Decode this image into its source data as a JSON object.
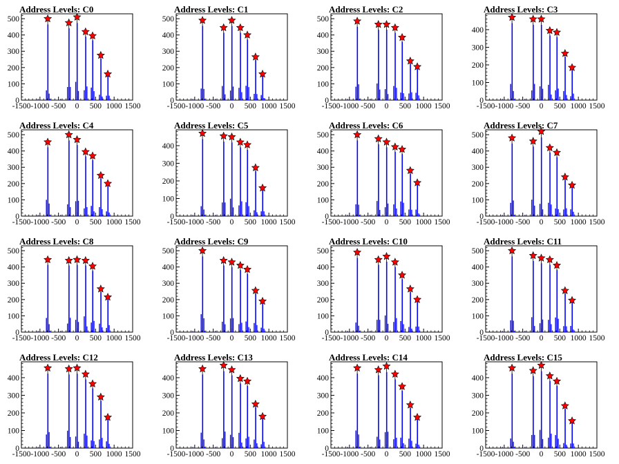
{
  "colors": {
    "histogram": "#0000ff",
    "marker": "#ff0000",
    "axes": "#000000"
  },
  "chart_data": [
    {
      "type": "bar",
      "title": "Address Levels: C0",
      "xlim": [
        -1500,
        1500
      ],
      "ylim": [
        0,
        530
      ],
      "xticks": [
        "-1500",
        "-1000",
        "-500",
        "0",
        "500",
        "1000",
        "1500"
      ],
      "yticks": [
        "0",
        "100",
        "200",
        "300",
        "400",
        "500"
      ],
      "peaks": [
        {
          "x": -790,
          "y": 500
        },
        {
          "x": -220,
          "y": 475
        },
        {
          "x": 0,
          "y": 510
        },
        {
          "x": 230,
          "y": 420
        },
        {
          "x": 420,
          "y": 395
        },
        {
          "x": 640,
          "y": 275
        },
        {
          "x": 830,
          "y": 160
        }
      ]
    },
    {
      "type": "bar",
      "title": "Address Levels: C1",
      "xlim": [
        -1500,
        1500
      ],
      "ylim": [
        0,
        530
      ],
      "xticks": [
        "-1500",
        "-1000",
        "-500",
        "0",
        "500",
        "1000",
        "1500"
      ],
      "yticks": [
        "0",
        "100",
        "200",
        "300",
        "400",
        "500"
      ],
      "peaks": [
        {
          "x": -790,
          "y": 490
        },
        {
          "x": -220,
          "y": 445
        },
        {
          "x": 0,
          "y": 490
        },
        {
          "x": 230,
          "y": 445
        },
        {
          "x": 420,
          "y": 400
        },
        {
          "x": 640,
          "y": 265
        },
        {
          "x": 830,
          "y": 160
        }
      ]
    },
    {
      "type": "bar",
      "title": "Address Levels: C2",
      "xlim": [
        -1500,
        1500
      ],
      "ylim": [
        0,
        530
      ],
      "xticks": [
        "-1500",
        "-1000",
        "-500",
        "0",
        "500",
        "1000",
        "1500"
      ],
      "yticks": [
        "0",
        "100",
        "200",
        "300",
        "400",
        "500"
      ],
      "peaks": [
        {
          "x": -790,
          "y": 485
        },
        {
          "x": -220,
          "y": 465
        },
        {
          "x": 0,
          "y": 465
        },
        {
          "x": 230,
          "y": 445
        },
        {
          "x": 420,
          "y": 385
        },
        {
          "x": 640,
          "y": 240
        },
        {
          "x": 830,
          "y": 205
        }
      ]
    },
    {
      "type": "bar",
      "title": "Address Levels: C3",
      "xlim": [
        -1500,
        1500
      ],
      "ylim": [
        0,
        490
      ],
      "xticks": [
        "-1500",
        "-1000",
        "-500",
        "0",
        "500",
        "1000",
        "1500"
      ],
      "yticks": [
        "0",
        "100",
        "200",
        "300",
        "400"
      ],
      "peaks": [
        {
          "x": -790,
          "y": 470
        },
        {
          "x": -220,
          "y": 460
        },
        {
          "x": 0,
          "y": 460
        },
        {
          "x": 230,
          "y": 395
        },
        {
          "x": 420,
          "y": 385
        },
        {
          "x": 640,
          "y": 265
        },
        {
          "x": 830,
          "y": 185
        }
      ]
    },
    {
      "type": "bar",
      "title": "Address Levels: C4",
      "xlim": [
        -1500,
        1500
      ],
      "ylim": [
        0,
        530
      ],
      "xticks": [
        "-1500",
        "-1000",
        "-500",
        "0",
        "500",
        "1000",
        "1500"
      ],
      "yticks": [
        "0",
        "100",
        "200",
        "300",
        "400",
        "500"
      ],
      "peaks": [
        {
          "x": -790,
          "y": 455
        },
        {
          "x": -220,
          "y": 500
        },
        {
          "x": 0,
          "y": 470
        },
        {
          "x": 230,
          "y": 395
        },
        {
          "x": 420,
          "y": 370
        },
        {
          "x": 640,
          "y": 250
        },
        {
          "x": 830,
          "y": 200
        }
      ]
    },
    {
      "type": "bar",
      "title": "Address Levels: C5",
      "xlim": [
        -1500,
        1500
      ],
      "ylim": [
        0,
        490
      ],
      "xticks": [
        "-1500",
        "-1000",
        "-500",
        "0",
        "500",
        "1000",
        "1500"
      ],
      "yticks": [
        "0",
        "100",
        "200",
        "300",
        "400"
      ],
      "peaks": [
        {
          "x": -790,
          "y": 470
        },
        {
          "x": -220,
          "y": 455
        },
        {
          "x": 0,
          "y": 450
        },
        {
          "x": 230,
          "y": 420
        },
        {
          "x": 420,
          "y": 405
        },
        {
          "x": 640,
          "y": 275
        },
        {
          "x": 830,
          "y": 160
        }
      ]
    },
    {
      "type": "bar",
      "title": "Address Levels: C6",
      "xlim": [
        -1500,
        1500
      ],
      "ylim": [
        0,
        530
      ],
      "xticks": [
        "-1500",
        "-1000",
        "-500",
        "0",
        "500",
        "1000",
        "1500"
      ],
      "yticks": [
        "0",
        "100",
        "200",
        "300",
        "400",
        "500"
      ],
      "peaks": [
        {
          "x": -790,
          "y": 500
        },
        {
          "x": -220,
          "y": 475
        },
        {
          "x": 0,
          "y": 455
        },
        {
          "x": 230,
          "y": 425
        },
        {
          "x": 420,
          "y": 410
        },
        {
          "x": 640,
          "y": 280
        },
        {
          "x": 830,
          "y": 205
        }
      ]
    },
    {
      "type": "bar",
      "title": "Address Levels: C7",
      "xlim": [
        -1500,
        1500
      ],
      "ylim": [
        0,
        530
      ],
      "xticks": [
        "-1500",
        "-1000",
        "-500",
        "0",
        "500",
        "1000",
        "1500"
      ],
      "yticks": [
        "0",
        "100",
        "200",
        "300",
        "400",
        "500"
      ],
      "peaks": [
        {
          "x": -790,
          "y": 480
        },
        {
          "x": -220,
          "y": 460
        },
        {
          "x": 0,
          "y": 520
        },
        {
          "x": 230,
          "y": 420
        },
        {
          "x": 420,
          "y": 390
        },
        {
          "x": 640,
          "y": 240
        },
        {
          "x": 830,
          "y": 190
        }
      ]
    },
    {
      "type": "bar",
      "title": "Address Levels: C8",
      "xlim": [
        -1500,
        1500
      ],
      "ylim": [
        0,
        530
      ],
      "xticks": [
        "-1500",
        "-1000",
        "-500",
        "0",
        "500",
        "1000",
        "1500"
      ],
      "yticks": [
        "0",
        "100",
        "200",
        "300",
        "400",
        "500"
      ],
      "peaks": [
        {
          "x": -790,
          "y": 445
        },
        {
          "x": -220,
          "y": 440
        },
        {
          "x": 0,
          "y": 445
        },
        {
          "x": 230,
          "y": 440
        },
        {
          "x": 420,
          "y": 405
        },
        {
          "x": 640,
          "y": 265
        },
        {
          "x": 830,
          "y": 215
        }
      ]
    },
    {
      "type": "bar",
      "title": "Address Levels: C9",
      "xlim": [
        -1500,
        1500
      ],
      "ylim": [
        0,
        530
      ],
      "xticks": [
        "-1500",
        "-1000",
        "-500",
        "0",
        "500",
        "1000",
        "1500"
      ],
      "yticks": [
        "0",
        "100",
        "200",
        "300",
        "400",
        "500"
      ],
      "peaks": [
        {
          "x": -790,
          "y": 500
        },
        {
          "x": -220,
          "y": 440
        },
        {
          "x": 0,
          "y": 430
        },
        {
          "x": 230,
          "y": 410
        },
        {
          "x": 420,
          "y": 385
        },
        {
          "x": 640,
          "y": 255
        },
        {
          "x": 830,
          "y": 190
        }
      ]
    },
    {
      "type": "bar",
      "title": "Address Levels: C10",
      "xlim": [
        -1500,
        1500
      ],
      "ylim": [
        0,
        530
      ],
      "xticks": [
        "-1500",
        "-1000",
        "-500",
        "0",
        "500",
        "1000",
        "1500"
      ],
      "yticks": [
        "0",
        "100",
        "200",
        "300",
        "400",
        "500"
      ],
      "peaks": [
        {
          "x": -790,
          "y": 490
        },
        {
          "x": -220,
          "y": 445
        },
        {
          "x": 0,
          "y": 465
        },
        {
          "x": 230,
          "y": 430
        },
        {
          "x": 420,
          "y": 350
        },
        {
          "x": 640,
          "y": 265
        },
        {
          "x": 830,
          "y": 200
        }
      ]
    },
    {
      "type": "bar",
      "title": "Address Levels: C11",
      "xlim": [
        -1500,
        1500
      ],
      "ylim": [
        0,
        530
      ],
      "xticks": [
        "-1500",
        "-1000",
        "-500",
        "0",
        "500",
        "1000",
        "1500"
      ],
      "yticks": [
        "0",
        "100",
        "200",
        "300",
        "400",
        "500"
      ],
      "peaks": [
        {
          "x": -790,
          "y": 500
        },
        {
          "x": -220,
          "y": 470
        },
        {
          "x": 0,
          "y": 455
        },
        {
          "x": 230,
          "y": 445
        },
        {
          "x": 420,
          "y": 410
        },
        {
          "x": 640,
          "y": 255
        },
        {
          "x": 830,
          "y": 195
        }
      ]
    },
    {
      "type": "bar",
      "title": "Address Levels: C12",
      "xlim": [
        -1500,
        1500
      ],
      "ylim": [
        0,
        490
      ],
      "xticks": [
        "-1500",
        "-1000",
        "-500",
        "0",
        "500",
        "1000",
        "1500"
      ],
      "yticks": [
        "0",
        "100",
        "200",
        "300",
        "400"
      ],
      "peaks": [
        {
          "x": -790,
          "y": 455
        },
        {
          "x": -220,
          "y": 450
        },
        {
          "x": 0,
          "y": 455
        },
        {
          "x": 230,
          "y": 420
        },
        {
          "x": 420,
          "y": 365
        },
        {
          "x": 640,
          "y": 290
        },
        {
          "x": 830,
          "y": 175
        }
      ]
    },
    {
      "type": "bar",
      "title": "Address Levels: C13",
      "xlim": [
        -1500,
        1500
      ],
      "ylim": [
        0,
        490
      ],
      "xticks": [
        "-1500",
        "-1000",
        "-500",
        "0",
        "500",
        "1000",
        "1500"
      ],
      "yticks": [
        "0",
        "100",
        "200",
        "300",
        "400"
      ],
      "peaks": [
        {
          "x": -790,
          "y": 450
        },
        {
          "x": -220,
          "y": 470
        },
        {
          "x": 0,
          "y": 445
        },
        {
          "x": 230,
          "y": 395
        },
        {
          "x": 420,
          "y": 380
        },
        {
          "x": 640,
          "y": 250
        },
        {
          "x": 830,
          "y": 180
        }
      ]
    },
    {
      "type": "bar",
      "title": "Address Levels: C14",
      "xlim": [
        -1500,
        1500
      ],
      "ylim": [
        0,
        490
      ],
      "xticks": [
        "-1500",
        "-1000",
        "-500",
        "0",
        "500",
        "1000",
        "1500"
      ],
      "yticks": [
        "0",
        "100",
        "200",
        "300",
        "400"
      ],
      "peaks": [
        {
          "x": -790,
          "y": 455
        },
        {
          "x": -220,
          "y": 445
        },
        {
          "x": 0,
          "y": 465
        },
        {
          "x": 230,
          "y": 420
        },
        {
          "x": 420,
          "y": 350
        },
        {
          "x": 640,
          "y": 245
        },
        {
          "x": 830,
          "y": 175
        }
      ]
    },
    {
      "type": "bar",
      "title": "Address Levels: C15",
      "xlim": [
        -1500,
        1500
      ],
      "ylim": [
        0,
        490
      ],
      "xticks": [
        "-1500",
        "-1000",
        "-500",
        "0",
        "500",
        "1000",
        "1500"
      ],
      "yticks": [
        "0",
        "100",
        "200",
        "300",
        "400"
      ],
      "peaks": [
        {
          "x": -790,
          "y": 455
        },
        {
          "x": -220,
          "y": 440
        },
        {
          "x": 0,
          "y": 470
        },
        {
          "x": 230,
          "y": 410
        },
        {
          "x": 420,
          "y": 380
        },
        {
          "x": 640,
          "y": 240
        },
        {
          "x": 830,
          "y": 155
        }
      ]
    }
  ]
}
